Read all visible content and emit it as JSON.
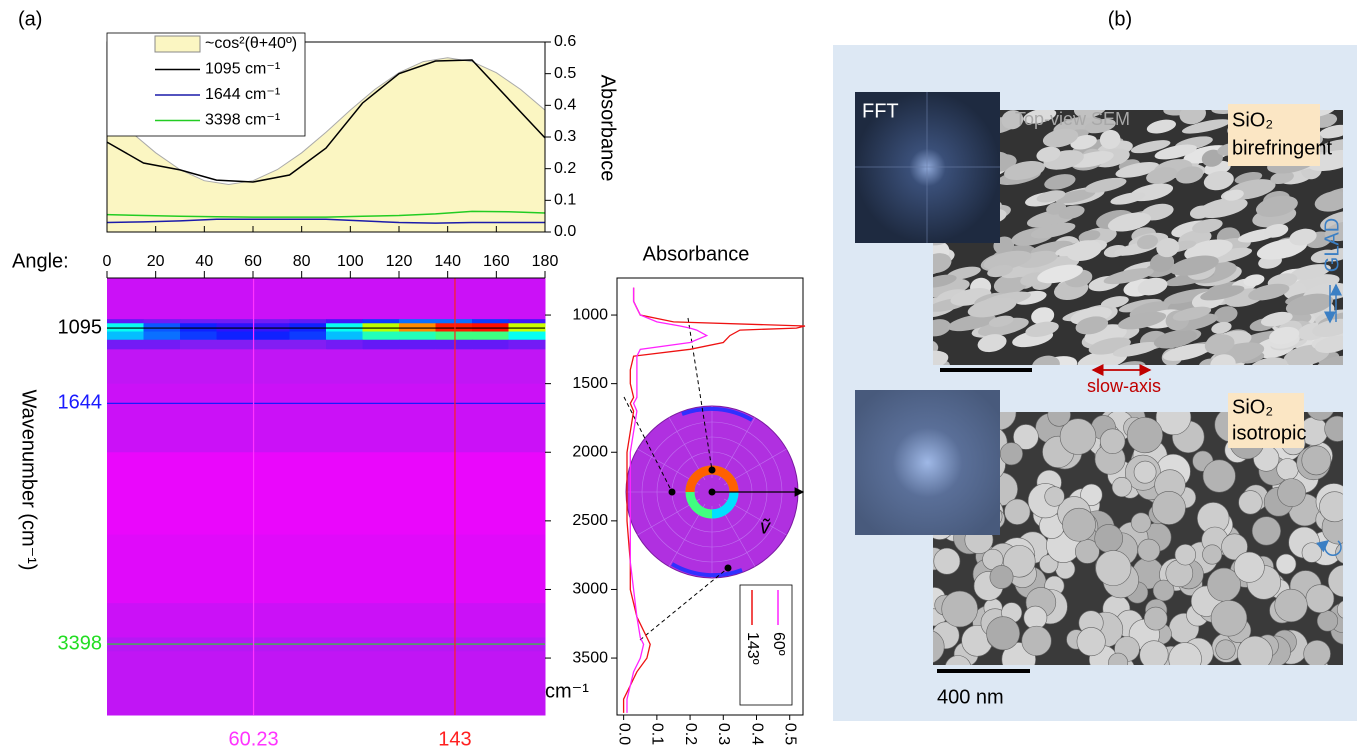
{
  "panels": {
    "a": "(a)",
    "b": "(b)"
  },
  "chart_data": [
    {
      "type": "line",
      "ylabel": "Absorbance",
      "xlim": [
        0,
        180
      ],
      "xticks": [
        0,
        20,
        40,
        60,
        80,
        100,
        120,
        140,
        160,
        180
      ],
      "ylim": [
        0,
        0.6
      ],
      "yticks": [
        {
          "value": 0,
          "label": "0.0"
        },
        0.1,
        0.2,
        0.3,
        0.4,
        0.5,
        0.6
      ],
      "series": [
        {
          "name": "~cos²(θ+40º)",
          "color": "#fbf6c2",
          "fill": true,
          "x": [
            0,
            10,
            20,
            30,
            40,
            50,
            60,
            70,
            80,
            90,
            100,
            110,
            120,
            130,
            140,
            150,
            160,
            170,
            180
          ],
          "values": [
            0.385,
            0.315,
            0.25,
            0.197,
            0.162,
            0.15,
            0.162,
            0.197,
            0.25,
            0.315,
            0.385,
            0.45,
            0.503,
            0.538,
            0.55,
            0.538,
            0.503,
            0.45,
            0.385
          ]
        },
        {
          "name": "1095 cm⁻¹",
          "color": "#000000",
          "fill": false,
          "x": [
            0,
            15,
            30,
            45,
            60,
            75,
            90,
            105,
            120,
            135,
            150,
            165,
            180
          ],
          "values": [
            0.284,
            0.218,
            0.196,
            0.164,
            0.158,
            0.18,
            0.265,
            0.407,
            0.5,
            0.54,
            0.543,
            0.42,
            0.297
          ]
        },
        {
          "name": "1644 cm⁻¹",
          "color": "#1a1aaa",
          "fill": false,
          "x": [
            0,
            15,
            30,
            45,
            60,
            75,
            90,
            105,
            120,
            135,
            150,
            165,
            180
          ],
          "values": [
            0.03,
            0.032,
            0.035,
            0.04,
            0.04,
            0.04,
            0.04,
            0.035,
            0.03,
            0.028,
            0.03,
            0.03,
            0.03
          ]
        },
        {
          "name": "3398 cm⁻¹",
          "color": "#22cc22",
          "fill": false,
          "x": [
            0,
            15,
            30,
            45,
            60,
            75,
            90,
            105,
            120,
            135,
            150,
            165,
            180
          ],
          "values": [
            0.055,
            0.052,
            0.05,
            0.048,
            0.047,
            0.047,
            0.047,
            0.05,
            0.052,
            0.057,
            0.065,
            0.064,
            0.06
          ]
        }
      ]
    },
    {
      "type": "heatmap",
      "xlabel": "Angle:",
      "ylabel": "Wavenumber (cm⁻¹)",
      "y_unit_label": "cm⁻¹",
      "xlim": [
        0,
        180
      ],
      "xticks": [
        0,
        20,
        40,
        60,
        80,
        100,
        120,
        140,
        160,
        180
      ],
      "ylim": [
        3915,
        730
      ],
      "x_edges": [
        0,
        15,
        30,
        45,
        60,
        75,
        90,
        105,
        120,
        135,
        150,
        165,
        180
      ],
      "y_edges": [
        730,
        1030,
        1060,
        1120,
        1180,
        1250,
        1500,
        2000,
        2600,
        3100,
        3350,
        3450,
        3915
      ],
      "zlim": [
        0,
        0.55
      ],
      "colorscale": [
        "#ff00ff",
        "#a020f0",
        "#1010ff",
        "#00ffff",
        "#80ff00",
        "#ffff00",
        "#ff0000"
      ],
      "z": [
        [
          0.05,
          0.05,
          0.05,
          0.05,
          0.05,
          0.05,
          0.05,
          0.05,
          0.05,
          0.05,
          0.05,
          0.05
        ],
        [
          0.13,
          0.12,
          0.12,
          0.12,
          0.12,
          0.13,
          0.15,
          0.2,
          0.22,
          0.22,
          0.2,
          0.15
        ],
        [
          0.28,
          0.21,
          0.19,
          0.165,
          0.16,
          0.19,
          0.28,
          0.41,
          0.5,
          0.54,
          0.545,
          0.42
        ],
        [
          0.25,
          0.22,
          0.2,
          0.19,
          0.19,
          0.2,
          0.25,
          0.3,
          0.3,
          0.32,
          0.32,
          0.28
        ],
        [
          0.12,
          0.12,
          0.11,
          0.11,
          0.11,
          0.11,
          0.12,
          0.13,
          0.13,
          0.13,
          0.13,
          0.12
        ],
        [
          0.06,
          0.06,
          0.06,
          0.06,
          0.06,
          0.06,
          0.06,
          0.06,
          0.06,
          0.06,
          0.06,
          0.06
        ],
        [
          0.05,
          0.05,
          0.05,
          0.05,
          0.05,
          0.05,
          0.05,
          0.05,
          0.05,
          0.05,
          0.05,
          0.05
        ],
        [
          0.02,
          0.02,
          0.02,
          0.02,
          0.02,
          0.02,
          0.02,
          0.02,
          0.02,
          0.02,
          0.02,
          0.02
        ],
        [
          0.03,
          0.03,
          0.03,
          0.03,
          0.03,
          0.03,
          0.03,
          0.03,
          0.03,
          0.03,
          0.03,
          0.03
        ],
        [
          0.05,
          0.05,
          0.05,
          0.05,
          0.05,
          0.05,
          0.05,
          0.05,
          0.05,
          0.05,
          0.05,
          0.05
        ],
        [
          0.07,
          0.07,
          0.07,
          0.07,
          0.07,
          0.07,
          0.07,
          0.07,
          0.07,
          0.07,
          0.07,
          0.07
        ],
        [
          0.06,
          0.06,
          0.06,
          0.06,
          0.06,
          0.06,
          0.06,
          0.06,
          0.06,
          0.06,
          0.06,
          0.06
        ]
      ],
      "hlines": [
        {
          "value": 1095,
          "color": "#000000"
        },
        {
          "value": 1644,
          "color": "#1a1aff"
        },
        {
          "value": 3398,
          "color": "#22dd22"
        }
      ],
      "vlines": [
        {
          "value": 60.23,
          "color": "#ff33ff"
        },
        {
          "value": 143,
          "color": "#ff2020"
        }
      ]
    },
    {
      "type": "spectrum",
      "title": "Absorbance",
      "annotation": "ṽ",
      "xlim": [
        -0.02,
        0.54
      ],
      "xticks": [
        {
          "value": 0,
          "label": "0.0"
        },
        0.1,
        0.2,
        0.3,
        0.4,
        0.5
      ],
      "ylim": [
        3915,
        730
      ],
      "yticks": [
        1000,
        1500,
        2000,
        2500,
        3000,
        3500
      ],
      "x": [
        800,
        900,
        950,
        1000,
        1050,
        1080,
        1095,
        1110,
        1150,
        1200,
        1250,
        1300,
        1400,
        1500,
        1600,
        1644,
        1700,
        2000,
        2500,
        2800,
        3000,
        3200,
        3350,
        3400,
        3500,
        3600,
        3700,
        3800,
        3900
      ],
      "series": [
        {
          "name": "143º",
          "color": "#ee1111",
          "values": [
            0.03,
            0.03,
            0.04,
            0.05,
            0.15,
            0.55,
            0.52,
            0.35,
            0.32,
            0.3,
            0.2,
            0.03,
            0.02,
            0.02,
            0.03,
            0.02,
            0.03,
            0.01,
            0.01,
            0.02,
            0.02,
            0.04,
            0.07,
            0.08,
            0.07,
            0.04,
            0.02,
            0.0,
            0.0
          ]
        },
        {
          "name": "60º",
          "color": "#ff22ff",
          "values": [
            0.03,
            0.03,
            0.04,
            0.05,
            0.1,
            0.17,
            0.2,
            0.22,
            0.25,
            0.2,
            0.05,
            0.04,
            0.04,
            0.04,
            0.04,
            0.03,
            0.04,
            0.02,
            0.02,
            0.02,
            0.03,
            0.04,
            0.05,
            0.06,
            0.05,
            0.03,
            0.02,
            0.01,
            0.01
          ]
        }
      ]
    }
  ],
  "panel_b": {
    "top": {
      "fft_label": "FFT",
      "caption": "Top-view SEM",
      "sample": [
        "SiO₂",
        "birefringent"
      ],
      "axis_label": "slow-axis",
      "growth_label": "GLAD"
    },
    "bottom": {
      "sample": [
        "SiO₂",
        "isotropic"
      ],
      "scale_label": "400 nm"
    }
  }
}
